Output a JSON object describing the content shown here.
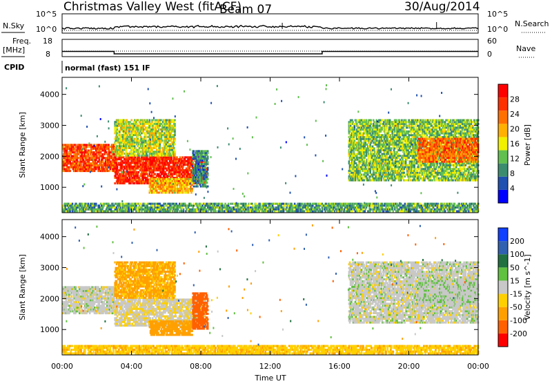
{
  "header": {
    "station": "Christmas Valley West (fitACF)",
    "beam": "Beam 07",
    "date": "30/Aug/2014"
  },
  "left_labels": {
    "nsky": "N.Sky",
    "nsky_top": "10^5",
    "nsky_bottom": "10^0",
    "freq": "Freq.",
    "freq_unit": "[MHz]",
    "freq_top": "18",
    "freq_bottom": "8",
    "cpid": "CPID"
  },
  "right_labels": {
    "nsearch": "N.Search",
    "nsearch_top": "10^5",
    "nsearch_bottom": "10^0",
    "nave": "Nave",
    "nave_top": "60",
    "nave_bottom": "0"
  },
  "cpid_text": "normal (fast) 151 IF",
  "colors": {
    "power_scale": [
      "#0000ff",
      "#2050b0",
      "#3c8c70",
      "#62c050",
      "#f0f000",
      "#ffb000",
      "#ff7000",
      "#ff3000",
      "#ff0000"
    ],
    "velocity_scale": [
      "#1040ff",
      "#3060b0",
      "#207040",
      "#60c040",
      "#c8c8c8",
      "#ffd000",
      "#ffa000",
      "#ff6000",
      "#ff0000"
    ],
    "sky_noise": "#000000"
  },
  "chart_data": [
    {
      "type": "heatmap",
      "name": "power",
      "ylabel": "Slant Range [km]",
      "yticks": [
        "1000",
        "2000",
        "3000",
        "4000"
      ],
      "ylim": [
        180,
        4550
      ],
      "colorbar_label": "Power [dB]",
      "colorbar_ticks": [
        "4",
        "8",
        "12",
        "16",
        "20",
        "24",
        "28"
      ],
      "clim": [
        0,
        30
      ]
    },
    {
      "type": "heatmap",
      "name": "velocity",
      "ylabel": "Slant Range [km]",
      "yticks": [
        "1000",
        "2000",
        "3000",
        "4000"
      ],
      "ylim": [
        180,
        4550
      ],
      "colorbar_label": "Velocity [m s^-1]",
      "colorbar_ticks": [
        "200",
        "100",
        "50",
        "15",
        "-15",
        "-50",
        "-100",
        "-200"
      ],
      "clim": [
        -250,
        250
      ]
    }
  ],
  "time_axis": {
    "label": "Time UT",
    "ticks": [
      "00:00",
      "04:00",
      "08:00",
      "12:00",
      "16:00",
      "20:00",
      "00:00"
    ],
    "xlim_hours": [
      0,
      24
    ]
  },
  "frequency_series": {
    "hours": [
      0,
      3,
      3,
      15,
      15,
      24
    ],
    "mhz": [
      11.0,
      11.0,
      9.6,
      9.6,
      11.0,
      11.0
    ]
  },
  "echo_regions": [
    {
      "t": [
        0.0,
        3.0
      ],
      "r": [
        1500,
        2400
      ],
      "power": 24,
      "vel": 0
    },
    {
      "t": [
        3.0,
        8.3
      ],
      "r": [
        1100,
        2000
      ],
      "power": 26,
      "vel": -10
    },
    {
      "t": [
        3.0,
        6.5
      ],
      "r": [
        2000,
        3200
      ],
      "power": 14,
      "vel": -60
    },
    {
      "t": [
        5.0,
        7.5
      ],
      "r": [
        800,
        1300
      ],
      "power": 18,
      "vel": -70
    },
    {
      "t": [
        7.5,
        8.4
      ],
      "r": [
        1000,
        2200
      ],
      "power": 8,
      "vel": -180
    },
    {
      "t": [
        16.5,
        24.0
      ],
      "r": [
        1200,
        3200
      ],
      "power": 12,
      "vel": 0
    },
    {
      "t": [
        20.5,
        24.0
      ],
      "r": [
        1800,
        2600
      ],
      "power": 22,
      "vel": 5
    },
    {
      "t": [
        0.0,
        24.0
      ],
      "r": [
        200,
        500
      ],
      "power": 10,
      "vel": -40
    }
  ]
}
